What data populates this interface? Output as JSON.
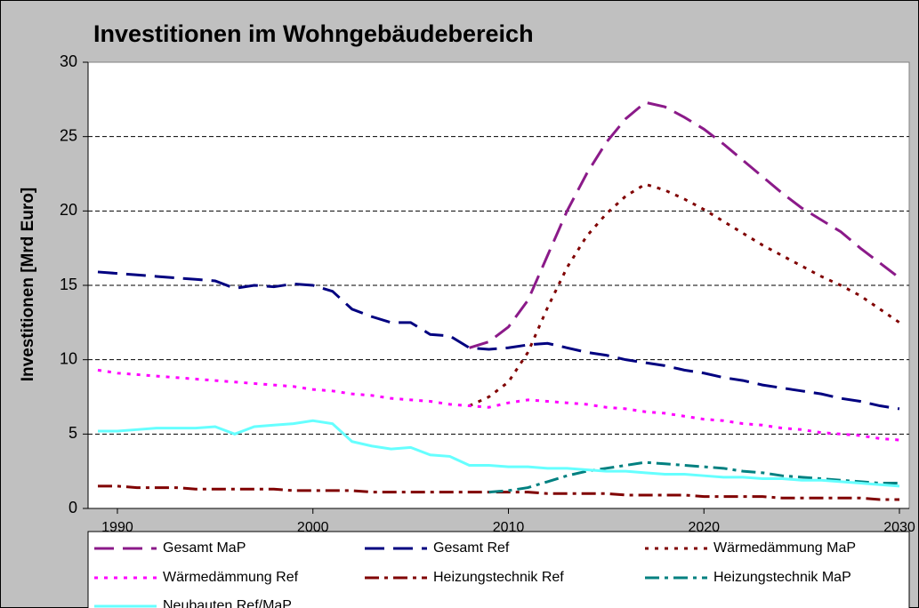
{
  "chart_data": {
    "type": "line",
    "title": "Investitionen im Wohngebäudebereich",
    "y_label": "Investitionen [Mrd Euro]",
    "x": [
      1989,
      1990,
      1991,
      1992,
      1993,
      1994,
      1995,
      1996,
      1997,
      1998,
      1999,
      2000,
      2001,
      2002,
      2003,
      2004,
      2005,
      2006,
      2007,
      2008,
      2009,
      2010,
      2011,
      2012,
      2013,
      2014,
      2015,
      2016,
      2017,
      2018,
      2019,
      2020,
      2021,
      2022,
      2023,
      2024,
      2025,
      2026,
      2027,
      2028,
      2029,
      2030
    ],
    "xlim": [
      1988.5,
      2030.5
    ],
    "xticks": [
      1990,
      2000,
      2010,
      2020,
      2030
    ],
    "ylim": [
      0,
      30
    ],
    "yticks": [
      0,
      5,
      10,
      15,
      20,
      25,
      30
    ],
    "grid": true,
    "series": [
      {
        "name": "Gesamt MaP",
        "color": "#8b1a89",
        "style": "dashed",
        "values": [
          null,
          null,
          null,
          null,
          null,
          null,
          null,
          null,
          null,
          null,
          null,
          null,
          null,
          null,
          null,
          null,
          null,
          null,
          null,
          10.8,
          11.2,
          12.2,
          14.0,
          17.0,
          20.0,
          22.5,
          24.6,
          26.2,
          27.3,
          27.0,
          26.3,
          25.5,
          24.5,
          23.4,
          22.3,
          21.2,
          20.2,
          19.4,
          18.6,
          17.5,
          16.5,
          15.5
        ]
      },
      {
        "name": "Gesamt Ref",
        "color": "#000080",
        "style": "dashed",
        "values": [
          15.9,
          15.8,
          15.7,
          15.6,
          15.5,
          15.4,
          15.3,
          14.8,
          15.0,
          14.9,
          15.1,
          15.0,
          14.6,
          13.4,
          12.9,
          12.5,
          12.5,
          11.7,
          11.6,
          10.8,
          10.7,
          10.8,
          11.0,
          11.1,
          10.8,
          10.5,
          10.3,
          10.0,
          9.8,
          9.6,
          9.3,
          9.1,
          8.8,
          8.6,
          8.3,
          8.1,
          7.9,
          7.7,
          7.4,
          7.2,
          6.9,
          6.7
        ]
      },
      {
        "name": "Wärmedämmung MaP",
        "color": "#800000",
        "style": "dotted",
        "values": [
          null,
          null,
          null,
          null,
          null,
          null,
          null,
          null,
          null,
          null,
          null,
          null,
          null,
          null,
          null,
          null,
          null,
          null,
          null,
          6.9,
          7.5,
          8.5,
          10.5,
          13.5,
          16.2,
          18.3,
          19.8,
          21.0,
          21.8,
          21.4,
          20.8,
          20.1,
          19.3,
          18.5,
          17.7,
          17.0,
          16.3,
          15.6,
          15.0,
          14.3,
          13.4,
          12.5
        ]
      },
      {
        "name": "Wärmedämmung Ref",
        "color": "#ff00ff",
        "style": "dotted",
        "values": [
          9.3,
          9.1,
          9.0,
          8.9,
          8.8,
          8.7,
          8.6,
          8.5,
          8.4,
          8.3,
          8.2,
          8.0,
          7.9,
          7.7,
          7.6,
          7.4,
          7.3,
          7.2,
          7.0,
          6.9,
          6.8,
          7.1,
          7.3,
          7.2,
          7.1,
          7.0,
          6.8,
          6.7,
          6.5,
          6.4,
          6.2,
          6.0,
          5.9,
          5.7,
          5.6,
          5.4,
          5.3,
          5.1,
          5.0,
          4.9,
          4.7,
          4.6
        ]
      },
      {
        "name": "Heizungstechnik Ref",
        "color": "#800000",
        "style": "dashdot",
        "values": [
          1.5,
          1.5,
          1.4,
          1.4,
          1.4,
          1.3,
          1.3,
          1.3,
          1.3,
          1.3,
          1.2,
          1.2,
          1.2,
          1.2,
          1.1,
          1.1,
          1.1,
          1.1,
          1.1,
          1.1,
          1.1,
          1.1,
          1.1,
          1.0,
          1.0,
          1.0,
          1.0,
          0.9,
          0.9,
          0.9,
          0.9,
          0.8,
          0.8,
          0.8,
          0.8,
          0.7,
          0.7,
          0.7,
          0.7,
          0.7,
          0.6,
          0.6
        ]
      },
      {
        "name": "Heizungstechnik MaP",
        "color": "#008080",
        "style": "dashdot",
        "values": [
          null,
          null,
          null,
          null,
          null,
          null,
          null,
          null,
          null,
          null,
          null,
          null,
          null,
          null,
          null,
          null,
          null,
          null,
          null,
          null,
          1.1,
          1.2,
          1.4,
          1.8,
          2.2,
          2.5,
          2.7,
          2.9,
          3.1,
          3.0,
          2.9,
          2.8,
          2.7,
          2.5,
          2.4,
          2.2,
          2.1,
          2.0,
          1.9,
          1.8,
          1.7,
          1.7
        ]
      },
      {
        "name": "Neubauten Ref/MaP",
        "color": "#66ffff",
        "style": "solid",
        "values": [
          5.2,
          5.2,
          5.3,
          5.4,
          5.4,
          5.4,
          5.5,
          5.0,
          5.5,
          5.6,
          5.7,
          5.9,
          5.7,
          4.5,
          4.2,
          4.0,
          4.1,
          3.6,
          3.5,
          2.9,
          2.9,
          2.8,
          2.8,
          2.7,
          2.7,
          2.6,
          2.5,
          2.5,
          2.4,
          2.3,
          2.3,
          2.2,
          2.1,
          2.1,
          2.0,
          2.0,
          1.9,
          1.9,
          1.8,
          1.7,
          1.6,
          1.5
        ]
      }
    ]
  }
}
